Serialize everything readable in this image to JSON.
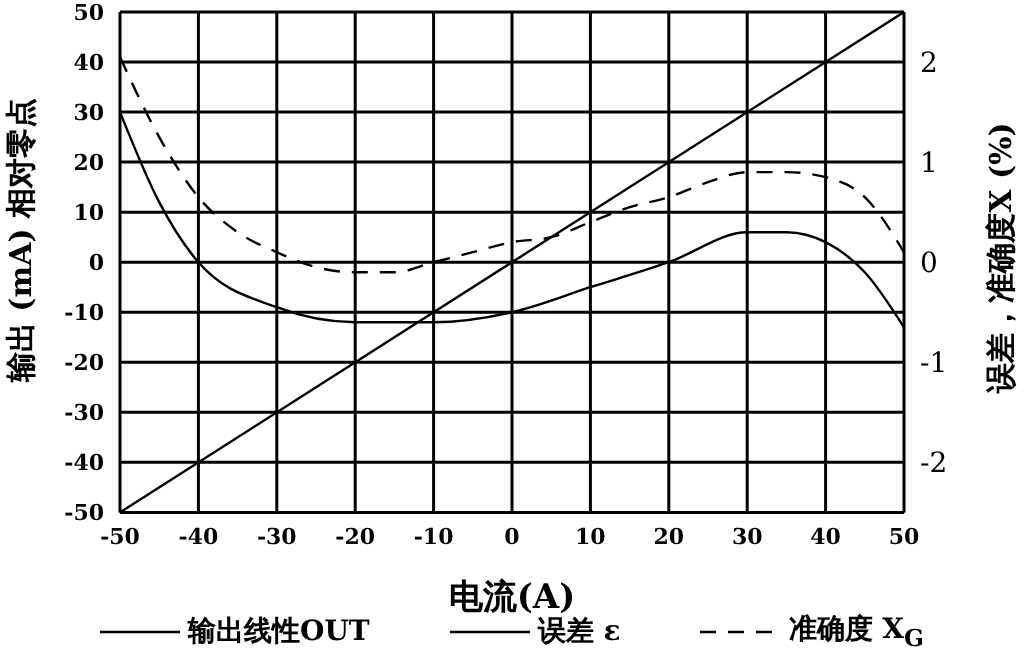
{
  "chart_data": {
    "type": "line",
    "xlabel": "电流(A)",
    "ylabel": "输出 (mA) 相对零点",
    "y2label": "误差，准确度X (%)",
    "xlim": [
      -50,
      50
    ],
    "xticks": [
      -50,
      -40,
      -30,
      -20,
      -10,
      0,
      10,
      20,
      30,
      40,
      50
    ],
    "ylim": [
      -50,
      50
    ],
    "yticks": [
      -50,
      -40,
      -30,
      -20,
      -10,
      0,
      10,
      20,
      30,
      40,
      50
    ],
    "y2lim": [
      -2.5,
      2.5
    ],
    "y2ticks": [
      -2,
      -1,
      0,
      1,
      2
    ],
    "grid": true,
    "legend": "bottom",
    "marker": "none",
    "series": [
      {
        "name": "输出线性OUT",
        "color": "#000000",
        "line_style": "solid",
        "x": [
          -50,
          50
        ],
        "values": [
          -50,
          50
        ]
      },
      {
        "name": "误差 ε",
        "color": "#000000",
        "line_style": "solid",
        "axis": "y2",
        "x": [
          -50,
          -45,
          -40,
          -30,
          -20,
          -10,
          0,
          10,
          20,
          30,
          35,
          40,
          45,
          50
        ],
        "values": [
          1.5,
          0.6,
          0,
          -0.45,
          -0.6,
          -0.6,
          -0.5,
          -0.25,
          0,
          0.3,
          0.3,
          0.2,
          -0.1,
          -0.65
        ]
      },
      {
        "name": "准确度 X$_{G}$",
        "color": "#000000",
        "line_style": "dashed",
        "axis": "y2",
        "x": [
          -50,
          -45,
          -40,
          -35,
          -30,
          -25,
          -20,
          -15,
          -10,
          -5,
          0,
          5,
          10,
          15,
          20,
          25,
          30,
          35,
          40,
          45,
          50
        ],
        "values": [
          2.05,
          1.25,
          0.65,
          0.3,
          0.1,
          -0.05,
          -0.1,
          -0.1,
          0,
          0.1,
          0.2,
          0.25,
          0.4,
          0.55,
          0.65,
          0.8,
          0.9,
          0.9,
          0.85,
          0.65,
          0.1
        ]
      }
    ]
  }
}
